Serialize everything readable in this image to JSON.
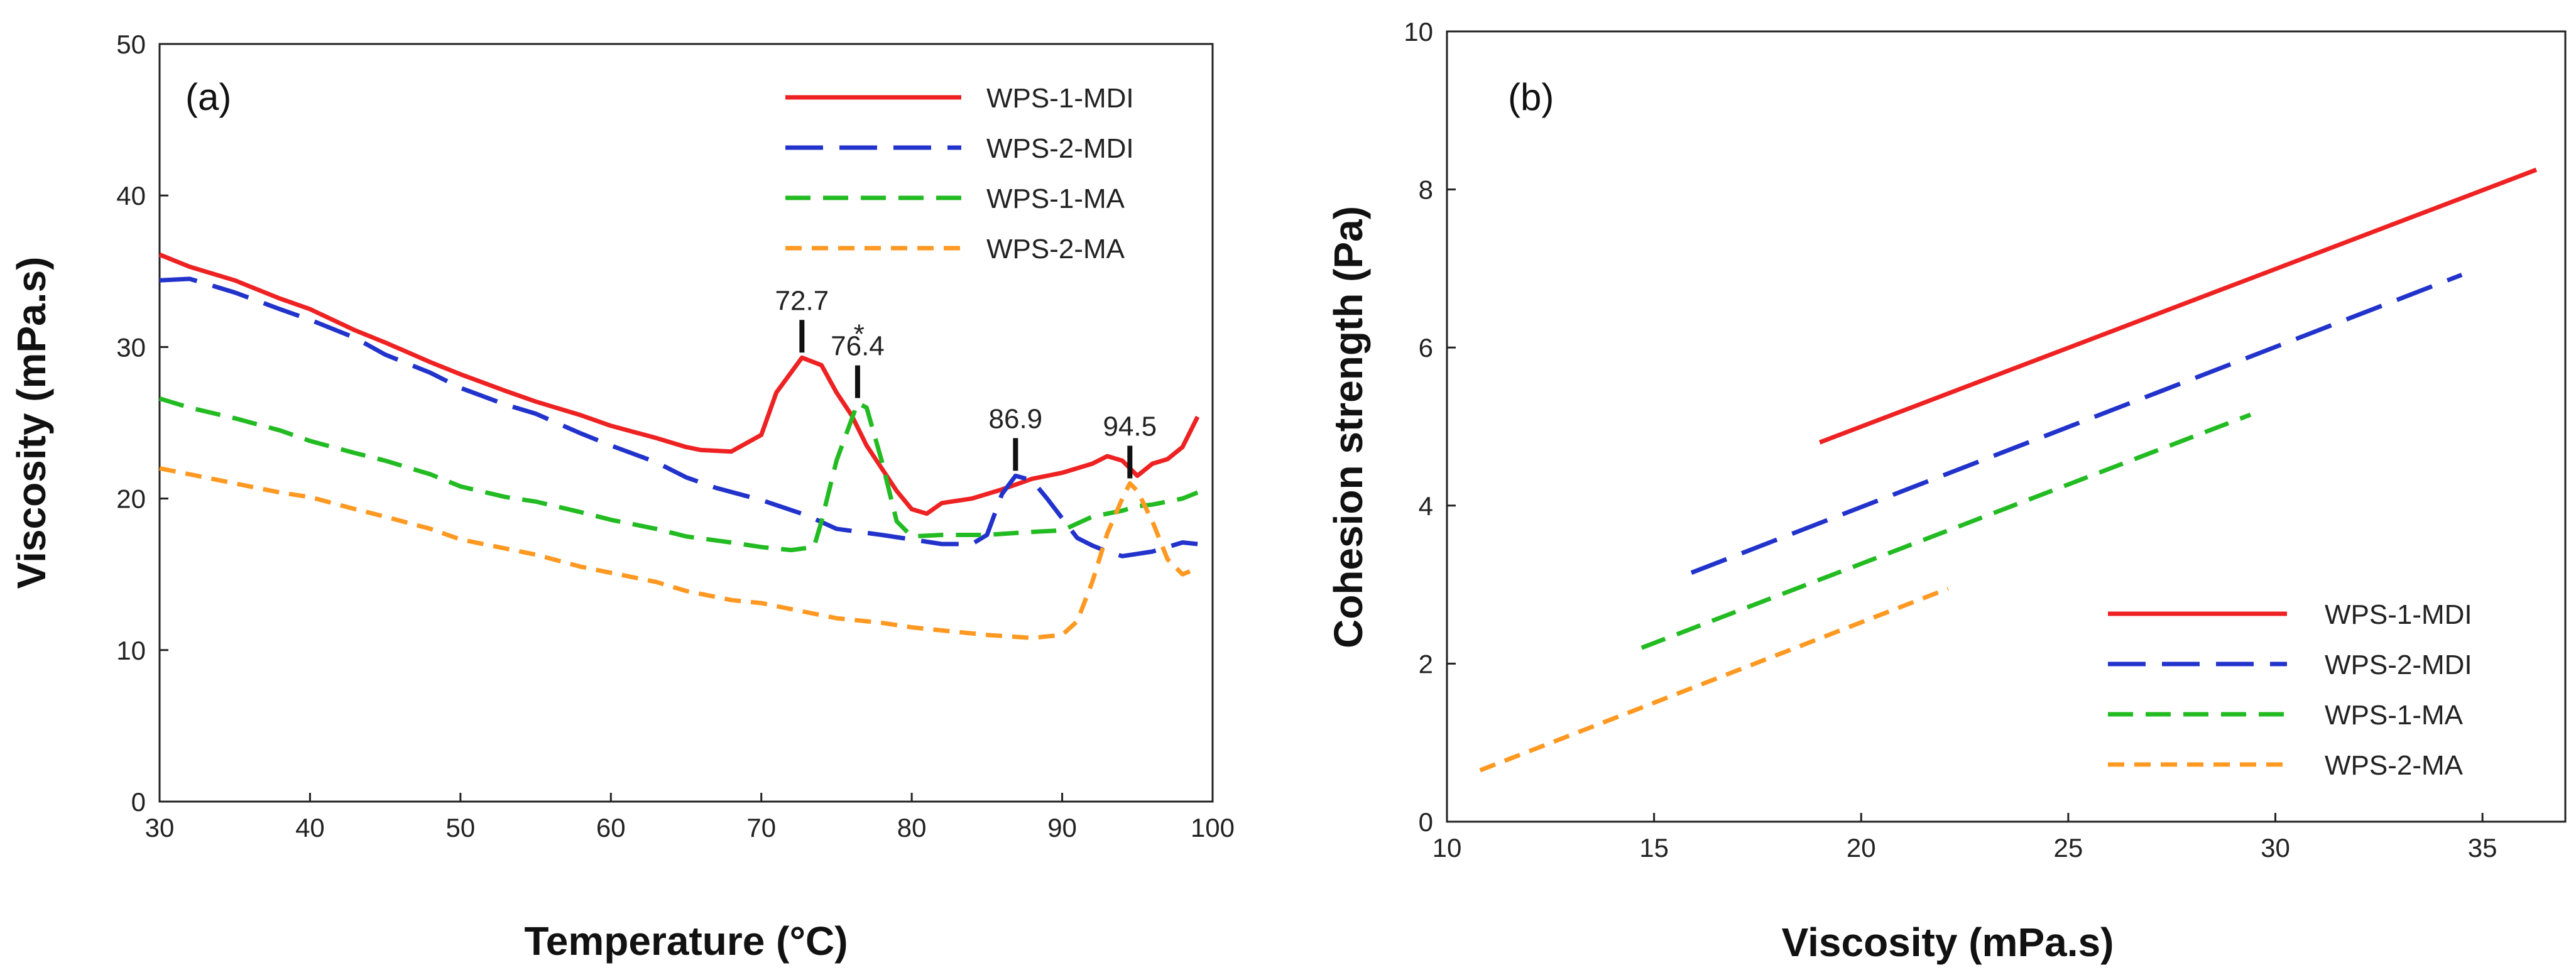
{
  "colors": {
    "WPS-1-MDI": "#ee2222",
    "WPS-2-MDI": "#2233cc",
    "WPS-1-MA": "#22bb22",
    "WPS-2-MA": "#ff9922",
    "axis": "#222222"
  },
  "chart_data": [
    {
      "type": "line",
      "panel": "(a)",
      "xlabel": "Temperature (°C)",
      "ylabel": "Viscosity (mPa.s)",
      "xlim": [
        30,
        100
      ],
      "ylim": [
        0,
        50
      ],
      "xticks": [
        30,
        40,
        50,
        60,
        70,
        80,
        90,
        100
      ],
      "yticks": [
        0,
        10,
        20,
        30,
        40,
        50
      ],
      "legend_position": "top-right",
      "series": [
        {
          "name": "WPS-1-MDI",
          "dash": "solid",
          "points": [
            [
              30,
              36.1
            ],
            [
              32,
              35.3
            ],
            [
              35,
              34.4
            ],
            [
              38,
              33.2
            ],
            [
              40,
              32.5
            ],
            [
              43,
              31.1
            ],
            [
              45,
              30.3
            ],
            [
              48,
              29.0
            ],
            [
              50,
              28.2
            ],
            [
              53,
              27.1
            ],
            [
              55,
              26.4
            ],
            [
              58,
              25.5
            ],
            [
              60,
              24.8
            ],
            [
              63,
              24.0
            ],
            [
              65,
              23.4
            ],
            [
              66,
              23.2
            ],
            [
              68,
              23.1
            ],
            [
              70,
              24.2
            ],
            [
              71,
              27.0
            ],
            [
              72.7,
              29.3
            ],
            [
              74,
              28.8
            ],
            [
              75,
              27.0
            ],
            [
              76,
              25.5
            ],
            [
              77,
              23.5
            ],
            [
              78,
              22.0
            ],
            [
              79,
              20.5
            ],
            [
              80,
              19.3
            ],
            [
              81,
              19.0
            ],
            [
              82,
              19.7
            ],
            [
              84,
              20.0
            ],
            [
              86,
              20.6
            ],
            [
              88,
              21.3
            ],
            [
              90,
              21.7
            ],
            [
              92,
              22.3
            ],
            [
              93,
              22.8
            ],
            [
              94,
              22.5
            ],
            [
              95,
              21.5
            ],
            [
              96,
              22.3
            ],
            [
              97,
              22.6
            ],
            [
              98,
              23.4
            ],
            [
              99,
              25.4
            ]
          ]
        },
        {
          "name": "WPS-2-MDI",
          "dash": "long",
          "points": [
            [
              30,
              34.4
            ],
            [
              32,
              34.5
            ],
            [
              35,
              33.6
            ],
            [
              38,
              32.5
            ],
            [
              40,
              31.8
            ],
            [
              43,
              30.6
            ],
            [
              45,
              29.5
            ],
            [
              48,
              28.3
            ],
            [
              50,
              27.3
            ],
            [
              53,
              26.2
            ],
            [
              55,
              25.6
            ],
            [
              58,
              24.3
            ],
            [
              60,
              23.5
            ],
            [
              63,
              22.4
            ],
            [
              65,
              21.4
            ],
            [
              67,
              20.7
            ],
            [
              70,
              19.9
            ],
            [
              73,
              18.9
            ],
            [
              75,
              18.0
            ],
            [
              78,
              17.6
            ],
            [
              80,
              17.3
            ],
            [
              82,
              17.0
            ],
            [
              84,
              17.0
            ],
            [
              85,
              17.6
            ],
            [
              86,
              20.3
            ],
            [
              86.9,
              21.5
            ],
            [
              88,
              21.2
            ],
            [
              89,
              20.0
            ],
            [
              90,
              18.7
            ],
            [
              91,
              17.4
            ],
            [
              92,
              16.9
            ],
            [
              93,
              16.5
            ],
            [
              94,
              16.2
            ],
            [
              96,
              16.5
            ],
            [
              98,
              17.1
            ],
            [
              99,
              17.0
            ]
          ]
        },
        {
          "name": "WPS-1-MA",
          "dash": "medium",
          "points": [
            [
              30,
              26.6
            ],
            [
              32,
              26.0
            ],
            [
              35,
              25.3
            ],
            [
              38,
              24.5
            ],
            [
              40,
              23.8
            ],
            [
              43,
              23.0
            ],
            [
              45,
              22.5
            ],
            [
              48,
              21.6
            ],
            [
              50,
              20.8
            ],
            [
              53,
              20.1
            ],
            [
              55,
              19.8
            ],
            [
              58,
              19.1
            ],
            [
              60,
              18.6
            ],
            [
              63,
              18.0
            ],
            [
              65,
              17.5
            ],
            [
              68,
              17.1
            ],
            [
              70,
              16.8
            ],
            [
              72,
              16.6
            ],
            [
              73.5,
              16.8
            ],
            [
              74,
              18.5
            ],
            [
              75,
              22.5
            ],
            [
              76.4,
              26.3
            ],
            [
              77,
              26.0
            ],
            [
              78,
              22.5
            ],
            [
              79,
              18.5
            ],
            [
              80,
              17.5
            ],
            [
              82,
              17.6
            ],
            [
              85,
              17.6
            ],
            [
              88,
              17.8
            ],
            [
              90,
              17.9
            ],
            [
              92,
              18.8
            ],
            [
              94,
              19.2
            ],
            [
              95,
              19.5
            ],
            [
              96,
              19.6
            ],
            [
              98,
              20.0
            ],
            [
              99,
              20.4
            ]
          ]
        },
        {
          "name": "WPS-2-MA",
          "dash": "short",
          "points": [
            [
              30,
              22.0
            ],
            [
              32,
              21.6
            ],
            [
              35,
              21.0
            ],
            [
              38,
              20.4
            ],
            [
              40,
              20.1
            ],
            [
              43,
              19.3
            ],
            [
              45,
              18.8
            ],
            [
              48,
              18.0
            ],
            [
              50,
              17.3
            ],
            [
              53,
              16.7
            ],
            [
              55,
              16.3
            ],
            [
              58,
              15.5
            ],
            [
              60,
              15.1
            ],
            [
              63,
              14.5
            ],
            [
              65,
              13.9
            ],
            [
              68,
              13.3
            ],
            [
              70,
              13.1
            ],
            [
              73,
              12.5
            ],
            [
              75,
              12.1
            ],
            [
              78,
              11.8
            ],
            [
              80,
              11.5
            ],
            [
              83,
              11.2
            ],
            [
              85,
              11.0
            ],
            [
              88,
              10.8
            ],
            [
              90,
              11.0
            ],
            [
              91,
              11.9
            ],
            [
              92,
              14.5
            ],
            [
              93,
              17.7
            ],
            [
              94,
              20.0
            ],
            [
              94.5,
              21.0
            ],
            [
              95,
              20.5
            ],
            [
              96,
              18.5
            ],
            [
              97,
              16.0
            ],
            [
              98,
              15.0
            ],
            [
              99,
              15.4
            ]
          ]
        }
      ],
      "annotations": [
        {
          "label": "72.7",
          "x": 72.7,
          "y": 29.3
        },
        {
          "label": "76.4",
          "x": 76.4,
          "y": 26.3
        },
        {
          "label": "86.9",
          "x": 86.9,
          "y": 21.5
        },
        {
          "label": "94.5",
          "x": 94.5,
          "y": 21.0
        }
      ],
      "marker": {
        "label": "*",
        "x": 76.5,
        "y": 30.9
      }
    },
    {
      "type": "line",
      "panel": "(b)",
      "xlabel": "Viscosity (mPa.s)",
      "ylabel": "Cohesion strength (Pa)",
      "xlim": [
        10,
        37
      ],
      "ylim": [
        0,
        10
      ],
      "xticks": [
        10,
        15,
        20,
        25,
        30,
        35
      ],
      "yticks": [
        0,
        2,
        4,
        6,
        8,
        10
      ],
      "legend_position": "bottom-right",
      "series": [
        {
          "name": "WPS-1-MDI",
          "dash": "solid",
          "points": [
            [
              19.0,
              4.8
            ],
            [
              36.3,
              8.25
            ]
          ]
        },
        {
          "name": "WPS-2-MDI",
          "dash": "long",
          "points": [
            [
              15.9,
              3.15
            ],
            [
              34.5,
              6.92
            ]
          ]
        },
        {
          "name": "WPS-1-MA",
          "dash": "medium",
          "points": [
            [
              14.7,
              2.2
            ],
            [
              29.4,
              5.15
            ]
          ]
        },
        {
          "name": "WPS-2-MA",
          "dash": "short",
          "points": [
            [
              10.8,
              0.65
            ],
            [
              22.1,
              2.95
            ]
          ]
        }
      ]
    }
  ]
}
